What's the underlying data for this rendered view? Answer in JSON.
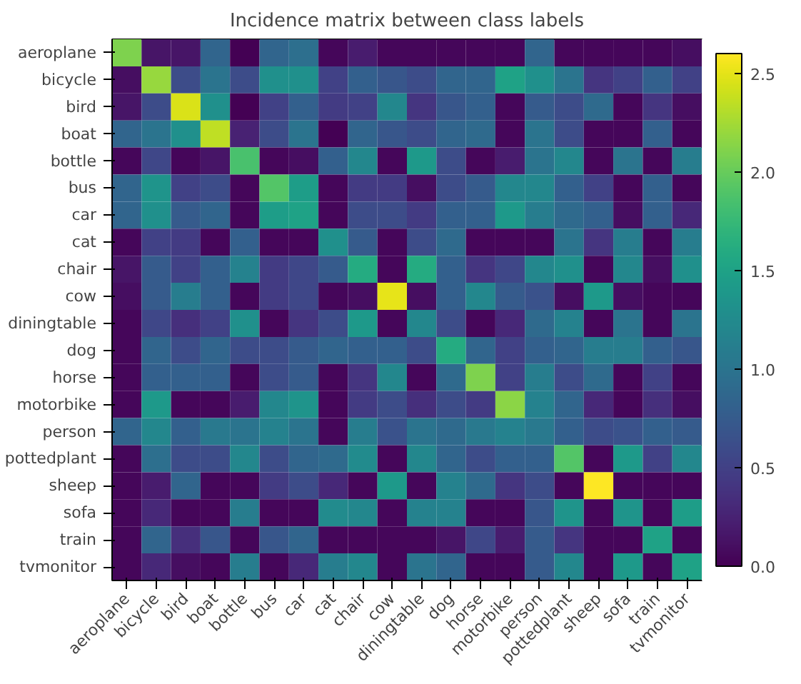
{
  "chart_data": {
    "type": "heatmap",
    "title": "Incidence matrix between class labels",
    "categories": [
      "aeroplane",
      "bicycle",
      "bird",
      "boat",
      "bottle",
      "bus",
      "car",
      "cat",
      "chair",
      "cow",
      "diningtable",
      "dog",
      "horse",
      "motorbike",
      "person",
      "pottedplant",
      "sheep",
      "sofa",
      "train",
      "tvmonitor"
    ],
    "y_categories": [
      "aeroplane",
      "bicycle",
      "bird",
      "boat",
      "bottle",
      "bus",
      "car",
      "cat",
      "chair",
      "cow",
      "diningtable",
      "dog",
      "horse",
      "motorbike",
      "person",
      "pottedplant",
      "sheep",
      "sofa",
      "train",
      "tvmonitor"
    ],
    "cells": [
      [
        2.1,
        0.15,
        0.15,
        0.85,
        0,
        0.85,
        0.95,
        0.05,
        0.2,
        0.05,
        0.05,
        0.05,
        0.05,
        0.05,
        0.85,
        0.05,
        0.05,
        0.05,
        0.05,
        0.1
      ],
      [
        0.1,
        2.2,
        0.6,
        1.0,
        0.6,
        1.3,
        1.3,
        0.5,
        0.8,
        0.7,
        0.6,
        0.85,
        0.85,
        1.5,
        1.3,
        1.0,
        0.4,
        0.5,
        0.8,
        0.5
      ],
      [
        0.15,
        0.6,
        2.45,
        1.3,
        0,
        0.5,
        0.8,
        0.45,
        0.5,
        1.2,
        0.4,
        0.7,
        0.8,
        0.05,
        0.75,
        0.6,
        0.9,
        0.05,
        0.4,
        0.1
      ],
      [
        0.85,
        1.0,
        1.3,
        2.35,
        0.25,
        0.6,
        1.0,
        0,
        0.85,
        0.7,
        0.6,
        0.85,
        0.9,
        0.05,
        1.0,
        0.6,
        0.05,
        0.05,
        0.8,
        0.05
      ],
      [
        0.05,
        0.55,
        0.05,
        0.15,
        1.85,
        0.05,
        0.1,
        0.8,
        1.2,
        0.05,
        1.4,
        0.6,
        0.05,
        0.2,
        1.0,
        1.2,
        0.05,
        1.0,
        0.05,
        1.1
      ],
      [
        0.85,
        1.35,
        0.5,
        0.6,
        0.05,
        1.9,
        1.45,
        0.05,
        0.45,
        0.45,
        0.1,
        0.6,
        0.75,
        1.2,
        1.2,
        0.8,
        0.5,
        0.05,
        0.8,
        0.05
      ],
      [
        0.85,
        1.3,
        0.75,
        0.85,
        0.05,
        1.45,
        1.5,
        0.05,
        0.6,
        0.6,
        0.45,
        0.8,
        0.8,
        1.4,
        1.1,
        0.9,
        0.8,
        0.1,
        0.8,
        0.3
      ],
      [
        0.05,
        0.5,
        0.45,
        0.05,
        0.8,
        0.05,
        0.05,
        1.3,
        0.75,
        0.05,
        0.6,
        0.9,
        0.05,
        0.05,
        0.05,
        1.0,
        0.4,
        1.1,
        0.05,
        1.1
      ],
      [
        0.15,
        0.75,
        0.5,
        0.8,
        1.15,
        0.45,
        0.55,
        0.75,
        1.6,
        0.05,
        1.6,
        0.8,
        0.4,
        0.55,
        1.2,
        1.3,
        0.05,
        1.2,
        0.1,
        1.3
      ],
      [
        0.1,
        0.75,
        1.1,
        0.8,
        0.05,
        0.45,
        0.55,
        0.05,
        0.1,
        2.5,
        0.1,
        0.8,
        1.2,
        0.75,
        0.65,
        0.1,
        1.4,
        0.1,
        0.05,
        0.05
      ],
      [
        0.05,
        0.55,
        0.35,
        0.5,
        1.3,
        0.05,
        0.4,
        0.6,
        1.4,
        0.05,
        1.2,
        0.6,
        0.05,
        0.3,
        0.9,
        1.15,
        0.05,
        1.0,
        0.05,
        1.0
      ],
      [
        0.05,
        0.85,
        0.6,
        0.85,
        0.6,
        0.6,
        0.75,
        0.85,
        0.8,
        0.8,
        0.6,
        1.6,
        0.85,
        0.5,
        0.8,
        0.85,
        1.1,
        1.1,
        0.8,
        0.7
      ],
      [
        0.05,
        0.8,
        0.8,
        0.8,
        0.05,
        0.6,
        0.75,
        0.05,
        0.4,
        1.2,
        0.05,
        0.9,
        2.1,
        0.5,
        1.1,
        0.6,
        0.9,
        0.05,
        0.5,
        0.05
      ],
      [
        0.05,
        1.4,
        0.05,
        0.05,
        0.2,
        1.2,
        1.35,
        0.05,
        0.45,
        0.6,
        0.35,
        0.6,
        0.45,
        2.15,
        1.15,
        0.85,
        0.3,
        0.05,
        0.35,
        0.1
      ],
      [
        0.85,
        1.2,
        0.8,
        1.05,
        1.0,
        1.15,
        1.0,
        0.05,
        1.1,
        0.65,
        1.0,
        0.9,
        1.05,
        1.15,
        1.05,
        0.8,
        0.6,
        0.65,
        0.8,
        0.75
      ],
      [
        0.05,
        0.95,
        0.6,
        0.6,
        1.2,
        0.6,
        0.85,
        0.9,
        1.25,
        0.05,
        1.2,
        0.85,
        0.6,
        0.8,
        0.8,
        1.9,
        0.05,
        1.4,
        0.5,
        1.2
      ],
      [
        0.05,
        0.2,
        0.85,
        0.05,
        0.05,
        0.45,
        0.6,
        0.3,
        0.05,
        1.4,
        0.05,
        1.15,
        0.9,
        0.4,
        0.6,
        0.05,
        2.6,
        0.05,
        0.05,
        0.05
      ],
      [
        0.05,
        0.3,
        0.05,
        0.05,
        1.1,
        0.05,
        0.05,
        1.25,
        1.2,
        0.05,
        1.15,
        1.15,
        0.05,
        0.05,
        0.7,
        1.35,
        0.05,
        1.35,
        0.05,
        1.45
      ],
      [
        0.05,
        0.85,
        0.35,
        0.7,
        0.05,
        0.7,
        0.85,
        0.05,
        0.05,
        0.05,
        0.05,
        0.15,
        0.55,
        0.2,
        0.75,
        0.4,
        0.05,
        0.05,
        1.5,
        0.05
      ],
      [
        0.05,
        0.3,
        0.1,
        0.05,
        1.1,
        0.05,
        0.3,
        1.1,
        1.2,
        0.05,
        1.0,
        0.85,
        0.05,
        0.05,
        0.75,
        1.2,
        0.05,
        1.4,
        0.05,
        1.5
      ]
    ],
    "clim": [
      0,
      2.6
    ],
    "cticks": [
      {
        "value": 0,
        "label": "0.0"
      },
      {
        "value": 0.5,
        "label": "0.5"
      },
      {
        "value": 1,
        "label": "1.0"
      },
      {
        "value": 1.5,
        "label": "1.5"
      },
      {
        "value": 2,
        "label": "2.0"
      },
      {
        "value": 2.5,
        "label": "2.5"
      }
    ]
  }
}
